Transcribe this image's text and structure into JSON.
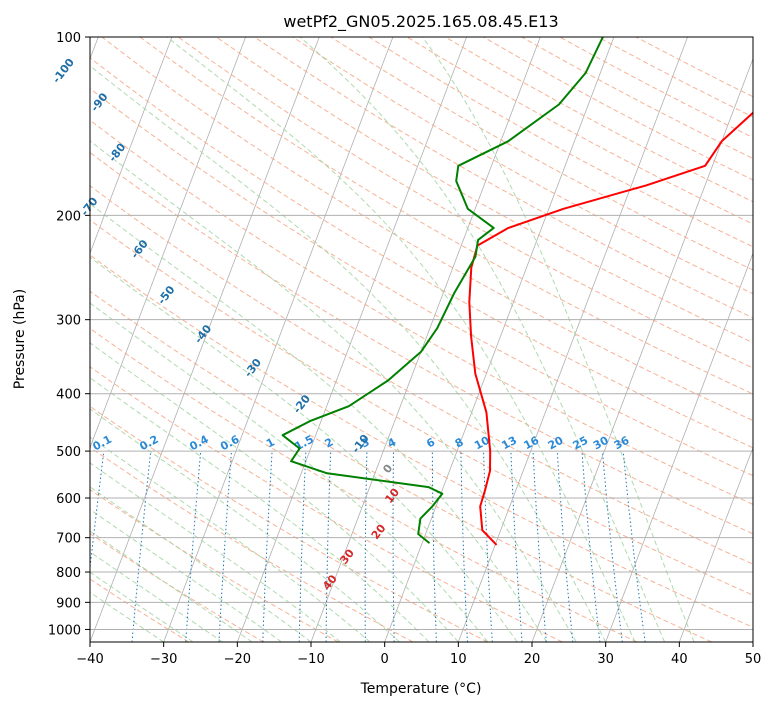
{
  "chart_data": {
    "type": "line",
    "title": "wetPf2_GN05.2025.165.08.45.E13",
    "xlabel": "Temperature (°C)",
    "ylabel": "Pressure (hPa)",
    "xlim": [
      -40,
      50
    ],
    "ylim": [
      1050,
      100
    ],
    "y_scale": "log",
    "x_ticks": [
      "−40",
      "−30",
      "−20",
      "−10",
      "0",
      "10",
      "20",
      "30",
      "40",
      "50"
    ],
    "y_ticks": [
      "100",
      "200",
      "300",
      "400",
      "500",
      "600",
      "700",
      "800",
      "900",
      "1000"
    ],
    "grid": true,
    "series": [
      {
        "color": "#ff0000",
        "points": [
          [
            10.2,
            720
          ],
          [
            7.5,
            680
          ],
          [
            6.0,
            620
          ],
          [
            5.8,
            580
          ],
          [
            5.5,
            540
          ],
          [
            4.5,
            500
          ],
          [
            2.0,
            430
          ],
          [
            -1.5,
            370
          ],
          [
            -4.0,
            320
          ],
          [
            -6.0,
            280
          ],
          [
            -7.5,
            245
          ],
          [
            -7.8,
            225
          ],
          [
            -4.5,
            210
          ],
          [
            2.0,
            195
          ],
          [
            12.0,
            178
          ],
          [
            19.0,
            165
          ],
          [
            20.0,
            150
          ],
          [
            23.0,
            133
          ],
          [
            24.5,
            120
          ],
          [
            27.5,
            110
          ],
          [
            30.0,
            103
          ],
          [
            32.0,
            100
          ]
        ]
      },
      {
        "color": "#008000",
        "points": [
          [
            1.0,
            715
          ],
          [
            -1.0,
            690
          ],
          [
            -1.5,
            650
          ],
          [
            -0.5,
            620
          ],
          [
            0.2,
            590
          ],
          [
            -2.0,
            575
          ],
          [
            -16.5,
            545
          ],
          [
            -22.0,
            520
          ],
          [
            -21.5,
            495
          ],
          [
            -24.5,
            470
          ],
          [
            -21.5,
            445
          ],
          [
            -17.0,
            420
          ],
          [
            -13.0,
            380
          ],
          [
            -10.0,
            340
          ],
          [
            -9.0,
            310
          ],
          [
            -8.5,
            270
          ],
          [
            -7.5,
            235
          ],
          [
            -8.0,
            220
          ],
          [
            -6.5,
            210
          ],
          [
            -11.0,
            195
          ],
          [
            -14.0,
            175
          ],
          [
            -14.5,
            165
          ],
          [
            -9.0,
            150
          ],
          [
            -4.0,
            130
          ],
          [
            -2.0,
            115
          ],
          [
            -1.5,
            100
          ]
        ]
      }
    ],
    "dry_adiabat_labels": [
      "-100",
      "-90",
      "-80",
      "-70",
      "-60",
      "-50",
      "-40",
      "-30",
      "-20",
      "-10",
      "0",
      "10",
      "20",
      "30",
      "40"
    ],
    "mixing_ratio_labels": [
      "0.1",
      "0.2",
      "0.4",
      "0.6",
      "1",
      "1.5",
      "2",
      "3",
      "4",
      "6",
      "8",
      "10",
      "13",
      "16",
      "20",
      "25",
      "30",
      "36"
    ],
    "colors": {
      "isotherm_grid": "#b0b0b0",
      "dry_adiabat": "#f4a582",
      "moist_adiabat": "#a6d6a6",
      "mixing_ratio": "#1f77b4",
      "dry_label": "#1f6fa8",
      "warm_label": "#d62728"
    }
  }
}
